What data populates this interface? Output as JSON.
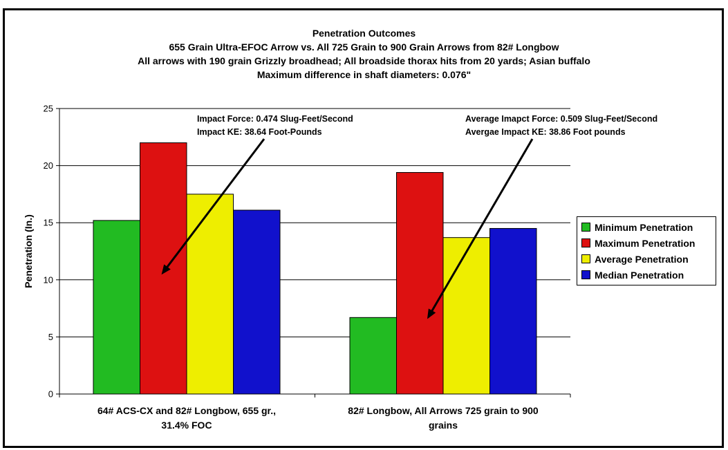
{
  "chart_data": {
    "type": "bar",
    "title": [
      "Penetration Outcomes",
      "655 Grain Ultra-EFOC Arrow vs. All 725 Grain to 900 Grain Arrows from 82# Longbow",
      "All arrows with 190 grain Grizzly broadhead; All broadside thorax hits from 20 yards; Asian buffalo",
      "Maximum difference in shaft diameters: 0.076\""
    ],
    "ylabel": "Penetration (In.)",
    "xlabel": "",
    "ylim": [
      0,
      25
    ],
    "yticks": [
      "0",
      "5",
      "10",
      "15",
      "20",
      "25"
    ],
    "grid": true,
    "legend_position": "right",
    "categories": [
      [
        "64# ACS-CX and 82# Longbow, 655 gr.,",
        "31.4% FOC"
      ],
      [
        "82# Longbow, All Arrows 725 grain to 900",
        "grains"
      ]
    ],
    "series": [
      {
        "name": "Minimum Penetration",
        "color": "#22bb22",
        "values": [
          15.2,
          6.7
        ]
      },
      {
        "name": "Maximum Penetration",
        "color": "#dd1111",
        "values": [
          22.0,
          19.4
        ]
      },
      {
        "name": "Average Penetration",
        "color": "#eeee00",
        "values": [
          17.5,
          13.7
        ]
      },
      {
        "name": "Median Penetration",
        "color": "#1111cc",
        "values": [
          16.1,
          14.5
        ]
      }
    ],
    "annotations": [
      {
        "category": 0,
        "lines": [
          "Impact Force: 0.474 Slug-Feet/Second",
          "Impact KE: 38.64 Foot-Pounds"
        ]
      },
      {
        "category": 1,
        "lines": [
          "Average Imapct Force: 0.509 Slug-Feet/Second",
          "Avergae Impact KE: 38.86 Foot pounds"
        ]
      }
    ]
  }
}
